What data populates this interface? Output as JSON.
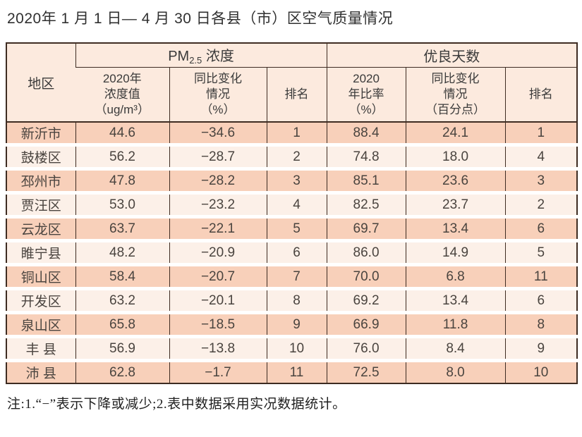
{
  "title": "2020年 1 月 1 日— 4 月 30 日各县（市）区空气质量情况",
  "note": "注:1.“−”表示下降或减少;2.表中数据采用实况数据统计。",
  "colors": {
    "border": "#3e2c22",
    "row_salmon": "#f8d0ba",
    "row_light": "#fcf0e8",
    "header_bg": "#fceade",
    "text": "#4a443f"
  },
  "table": {
    "header": {
      "region": "地区",
      "pm_group": {
        "prefix": "PM",
        "sub": "2.5",
        "suffix": " 浓度"
      },
      "days_group": "优良天数",
      "pm_value": "2020年\n浓度值\n（ug/m³）",
      "pm_change": "同比变化\n情况\n（%）",
      "pm_rank": "排名",
      "days_rate": "2020\n年比率\n（%）",
      "days_change": "同比变化\n情况\n（百分点）",
      "days_rank": "排名"
    },
    "rows": [
      {
        "region": "新沂市",
        "pm_value": "44.6",
        "pm_change": "−34.6",
        "pm_rank": "1",
        "days_rate": "88.4",
        "days_change": "24.1",
        "days_rank": "1"
      },
      {
        "region": "鼓楼区",
        "pm_value": "56.2",
        "pm_change": "−28.7",
        "pm_rank": "2",
        "days_rate": "74.8",
        "days_change": "18.0",
        "days_rank": "4"
      },
      {
        "region": "邳州市",
        "pm_value": "47.8",
        "pm_change": "−28.2",
        "pm_rank": "3",
        "days_rate": "85.1",
        "days_change": "23.6",
        "days_rank": "3"
      },
      {
        "region": "贾汪区",
        "pm_value": "53.0",
        "pm_change": "−23.2",
        "pm_rank": "4",
        "days_rate": "82.5",
        "days_change": "23.7",
        "days_rank": "2"
      },
      {
        "region": "云龙区",
        "pm_value": "63.7",
        "pm_change": "−22.1",
        "pm_rank": "5",
        "days_rate": "69.7",
        "days_change": "13.4",
        "days_rank": "6"
      },
      {
        "region": "睢宁县",
        "pm_value": "48.2",
        "pm_change": "−20.9",
        "pm_rank": "6",
        "days_rate": "86.0",
        "days_change": "14.9",
        "days_rank": "5"
      },
      {
        "region": "铜山区",
        "pm_value": "58.4",
        "pm_change": "−20.7",
        "pm_rank": "7",
        "days_rate": "70.0",
        "days_change": "6.8",
        "days_rank": "11"
      },
      {
        "region": "开发区",
        "pm_value": "63.2",
        "pm_change": "−20.1",
        "pm_rank": "8",
        "days_rate": "69.2",
        "days_change": "13.4",
        "days_rank": "6"
      },
      {
        "region": "泉山区",
        "pm_value": "65.8",
        "pm_change": "−18.5",
        "pm_rank": "9",
        "days_rate": "66.9",
        "days_change": "11.8",
        "days_rank": "8"
      },
      {
        "region": "丰 县",
        "pm_value": "56.9",
        "pm_change": "−13.8",
        "pm_rank": "10",
        "days_rate": "76.0",
        "days_change": "8.4",
        "days_rank": "9"
      },
      {
        "region": "沛 县",
        "pm_value": "62.8",
        "pm_change": "−1.7",
        "pm_rank": "11",
        "days_rate": "72.5",
        "days_change": "8.0",
        "days_rank": "10"
      }
    ]
  }
}
